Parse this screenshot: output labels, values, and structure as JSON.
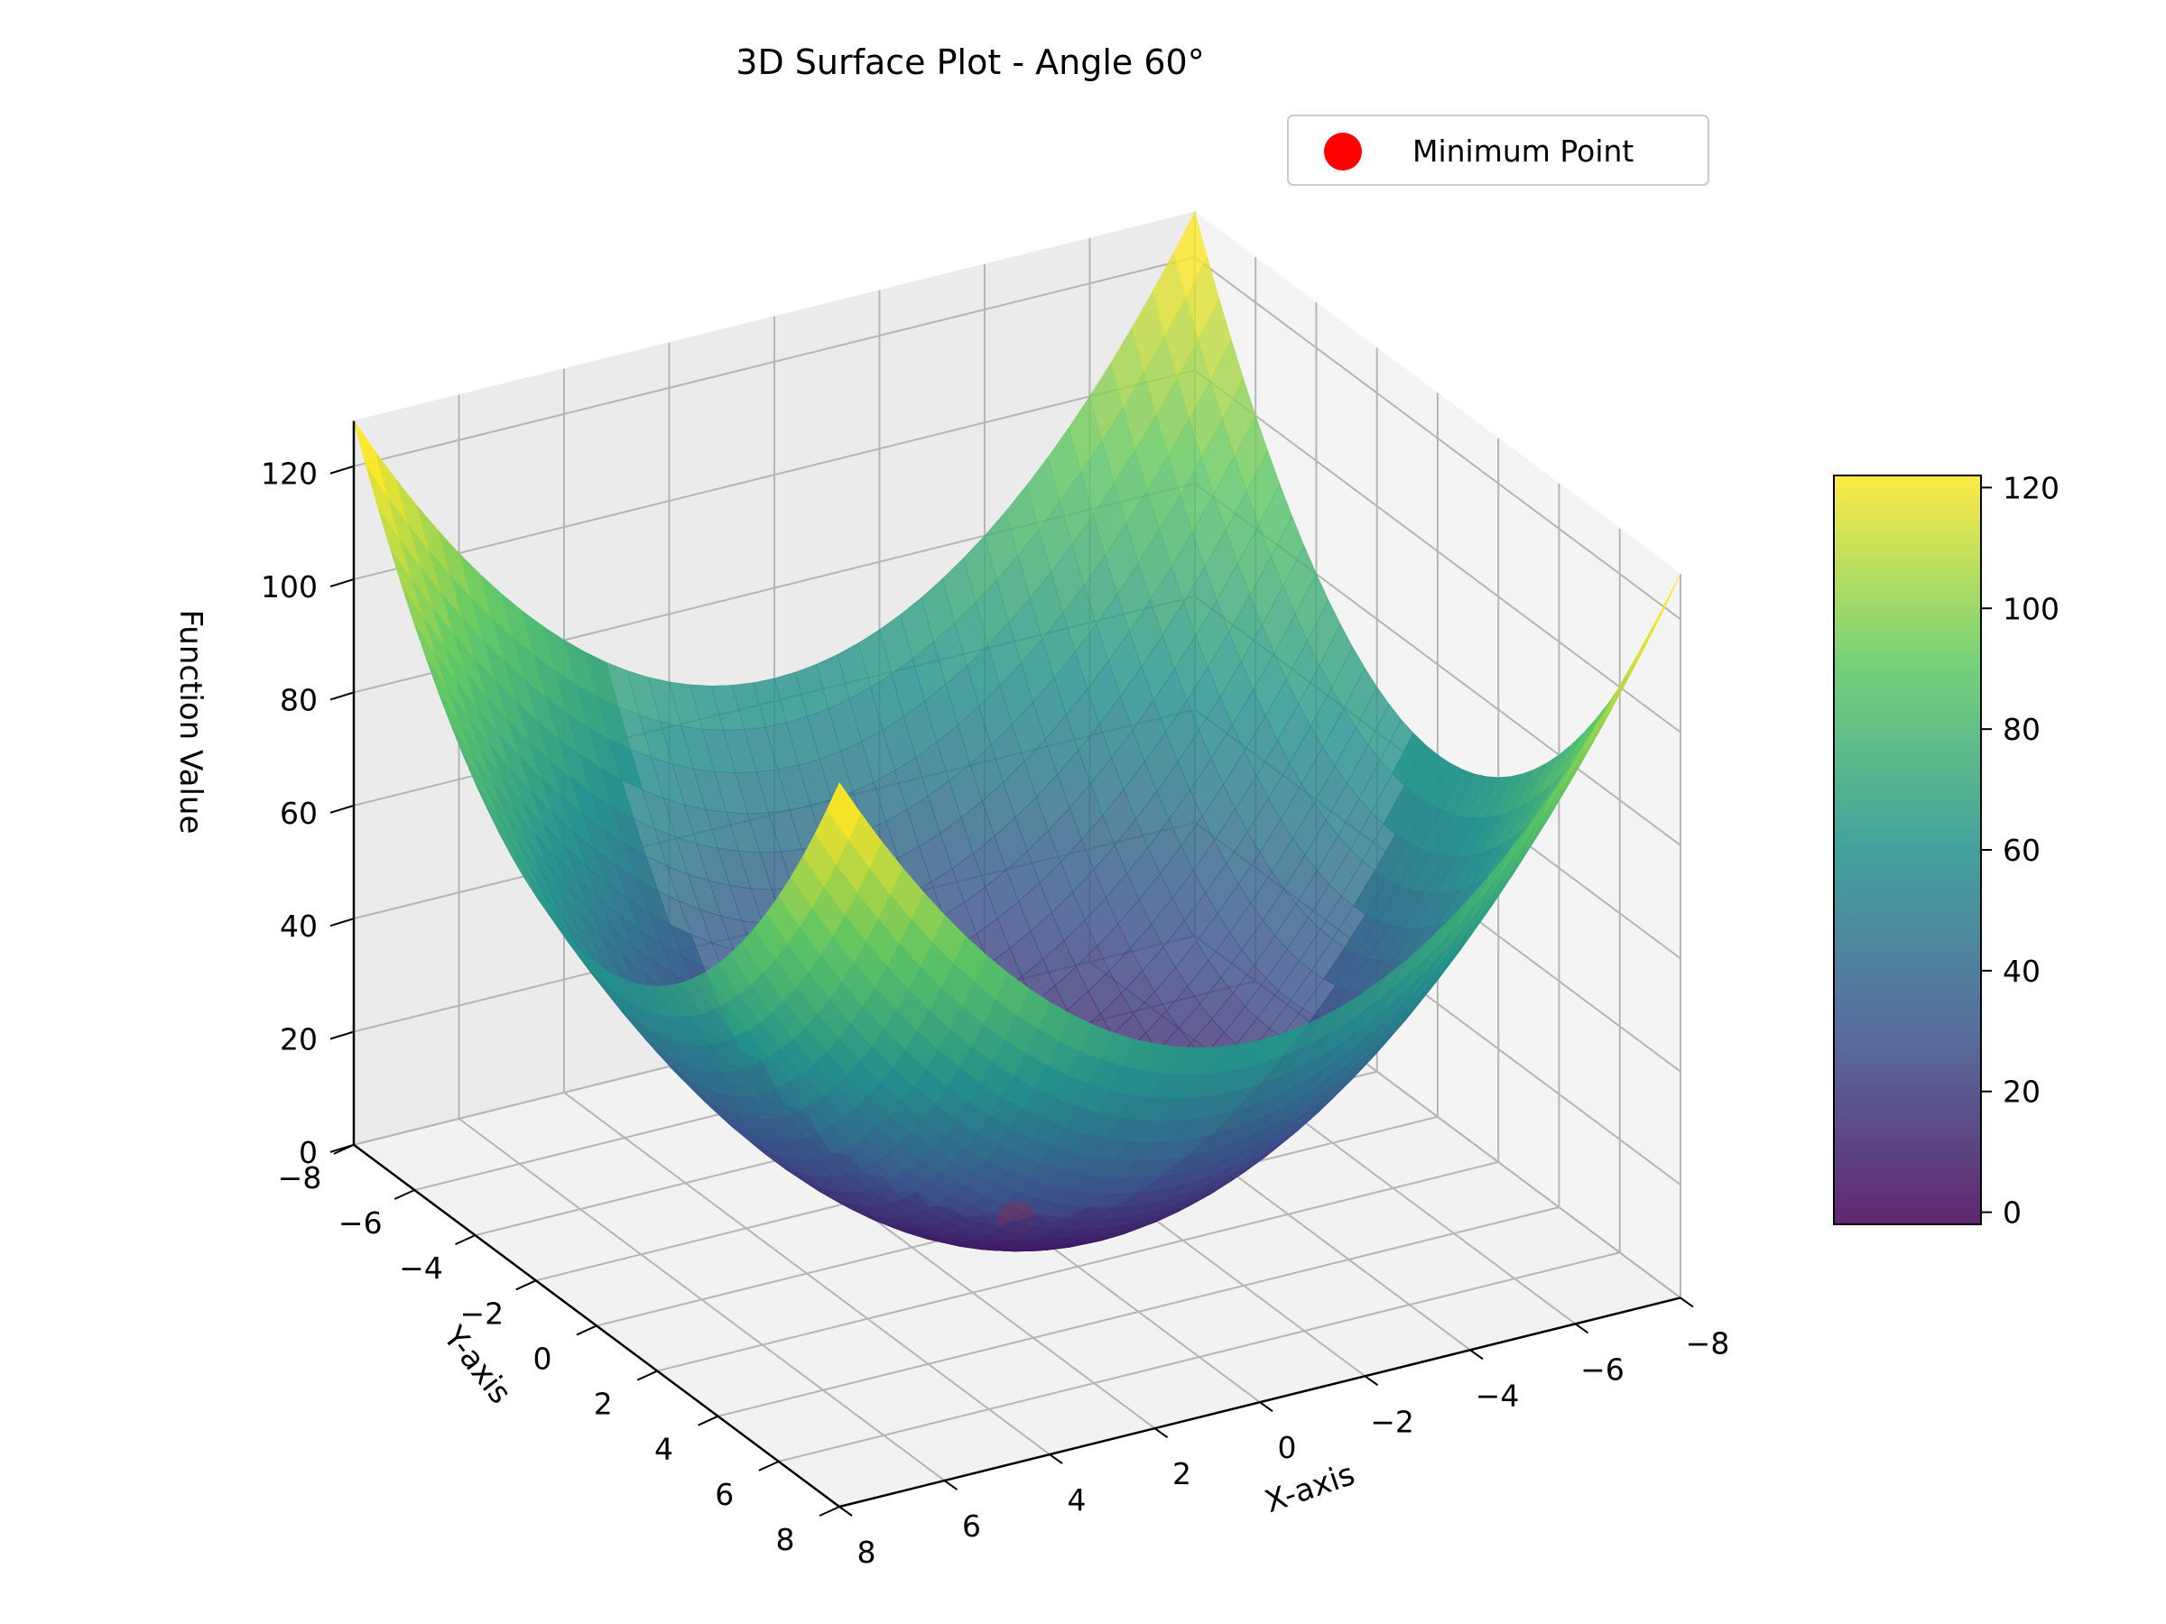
{
  "chart_data": {
    "type": "surface",
    "title": "3D Surface Plot - Angle 60°",
    "xlabel": "X-axis",
    "ylabel": "Y-axis",
    "zlabel": "Function Value",
    "function": "z = x^2 + y^2",
    "x_range": [
      -8,
      8
    ],
    "y_range": [
      -8,
      8
    ],
    "z_range": [
      0,
      128
    ],
    "view": {
      "elevation_deg": 30,
      "azimuth_deg": 60
    },
    "x_ticks": [
      "−8",
      "−6",
      "−4",
      "−2",
      "0",
      "2",
      "4",
      "6",
      "8"
    ],
    "y_ticks": [
      "−8",
      "−6",
      "−4",
      "−2",
      "0",
      "2",
      "4",
      "6",
      "8"
    ],
    "z_ticks": [
      "0",
      "20",
      "40",
      "60",
      "80",
      "100",
      "120"
    ],
    "x_tick_values": [
      -8,
      -6,
      -4,
      -2,
      0,
      2,
      4,
      6,
      8
    ],
    "y_tick_values": [
      -8,
      -6,
      -4,
      -2,
      0,
      2,
      4,
      6,
      8
    ],
    "z_tick_values": [
      0,
      20,
      40,
      60,
      80,
      100,
      120
    ],
    "colormap": "viridis",
    "colormap_stops": [
      "#440154",
      "#3b528b",
      "#21918c",
      "#5ec962",
      "#fde725"
    ],
    "surface_alpha": 0.8,
    "colorbar": {
      "range": [
        -2,
        122
      ],
      "ticks": [
        "0",
        "20",
        "40",
        "60",
        "80",
        "100",
        "120"
      ],
      "tick_values": [
        0,
        20,
        40,
        60,
        80,
        100,
        120
      ]
    },
    "minimum_point": {
      "x": 0,
      "y": 0,
      "z": 0,
      "color": "#ff0000"
    },
    "legend": {
      "entries": [
        "Minimum Point"
      ],
      "placement": "top-right"
    },
    "grid": true
  }
}
